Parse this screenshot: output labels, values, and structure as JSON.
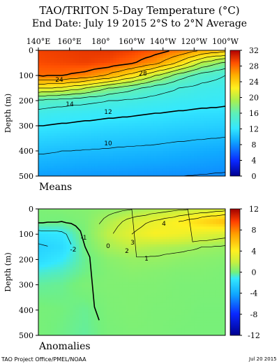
{
  "title": "TAO/TRITON 5-Day Temperature (°C)",
  "subtitle": "End Date: July 19 2015   2°S to 2°N Average",
  "footer_left": "TAO Project Office/PMEL/NOAA",
  "footer_right": "Jul 20 2015",
  "chart_data": [
    {
      "type": "heatmap",
      "panel_label": "Means",
      "x_tick_labels": [
        "140°E",
        "160°E",
        "180°",
        "160°W",
        "140°W",
        "120°W",
        "100°W"
      ],
      "ylabel": "Depth (m)",
      "ylim": [
        500,
        0
      ],
      "y_ticks": [
        0,
        100,
        200,
        300,
        400,
        500
      ],
      "colorbar_ticks": [
        32,
        28,
        24,
        20,
        16,
        12,
        8,
        4,
        0
      ],
      "colorbar_range": [
        0,
        32
      ],
      "contour_labels": [
        "28",
        "24",
        "14",
        "12",
        "10"
      ],
      "x": [
        140,
        155,
        170,
        185,
        200,
        215,
        230,
        245,
        260
      ],
      "depth": [
        0,
        50,
        100,
        150,
        200,
        250,
        300,
        400,
        500
      ],
      "values": [
        [
          29.5,
          29.7,
          29.9,
          30.0,
          29.6,
          28.8,
          27.6,
          25.8,
          24.5
        ],
        [
          29.2,
          29.4,
          29.6,
          29.2,
          28.2,
          26.5,
          23.5,
          19.5,
          17.5
        ],
        [
          28.0,
          28.0,
          27.2,
          25.5,
          23.0,
          20.0,
          17.0,
          15.0,
          14.0
        ],
        [
          22.0,
          21.5,
          20.0,
          18.0,
          16.5,
          15.0,
          14.0,
          13.3,
          13.0
        ],
        [
          15.5,
          15.0,
          14.5,
          14.0,
          13.6,
          13.2,
          12.8,
          12.6,
          12.4
        ],
        [
          13.2,
          12.8,
          12.6,
          12.4,
          12.2,
          12.0,
          11.8,
          11.6,
          11.5
        ],
        [
          12.0,
          11.8,
          11.6,
          11.4,
          11.3,
          11.2,
          11.0,
          10.9,
          10.8
        ],
        [
          10.2,
          10.0,
          9.9,
          9.8,
          9.7,
          9.6,
          9.4,
          9.2,
          9.0
        ],
        [
          8.6,
          8.5,
          8.4,
          8.3,
          8.2,
          8.1,
          8.0,
          7.9,
          7.8
        ]
      ]
    },
    {
      "type": "heatmap",
      "panel_label": "Anomalies",
      "ylabel": "Depth (m)",
      "ylim": [
        500,
        0
      ],
      "y_ticks": [
        0,
        100,
        200,
        300,
        400,
        500
      ],
      "colorbar_ticks": [
        12,
        8,
        4,
        0,
        -4,
        -8,
        -12
      ],
      "colorbar_range": [
        -12,
        12
      ],
      "contour_labels": [
        "4",
        "3",
        "2",
        "1",
        "0",
        "-1",
        "-2"
      ],
      "x": [
        140,
        155,
        170,
        185,
        200,
        215,
        230,
        245,
        260
      ],
      "depth": [
        0,
        50,
        100,
        150,
        200,
        250,
        300,
        400,
        500
      ],
      "values": [
        [
          0.2,
          0.3,
          0.4,
          0.6,
          1.0,
          1.4,
          1.8,
          2.2,
          2.5
        ],
        [
          0.1,
          0.0,
          0.3,
          1.4,
          2.5,
          3.2,
          4.0,
          5.0,
          6.0
        ],
        [
          -1.5,
          -1.3,
          0.2,
          1.8,
          3.0,
          3.8,
          3.5,
          3.0,
          2.5
        ],
        [
          -2.2,
          -1.8,
          0.0,
          1.2,
          1.8,
          1.5,
          1.3,
          1.0,
          0.8
        ],
        [
          -1.8,
          -1.2,
          -0.2,
          0.5,
          0.8,
          0.8,
          0.6,
          0.5,
          0.4
        ],
        [
          -0.8,
          -0.6,
          -0.1,
          0.3,
          0.5,
          0.4,
          0.3,
          0.3,
          0.2
        ],
        [
          -0.3,
          -0.2,
          0.2,
          0.3,
          0.3,
          0.3,
          0.2,
          0.2,
          0.2
        ],
        [
          0.1,
          0.0,
          -0.2,
          0.2,
          0.3,
          0.2,
          0.2,
          0.1,
          0.1
        ],
        [
          0.1,
          -0.1,
          -0.3,
          0.1,
          0.2,
          0.2,
          0.1,
          0.1,
          0.1
        ]
      ]
    }
  ]
}
